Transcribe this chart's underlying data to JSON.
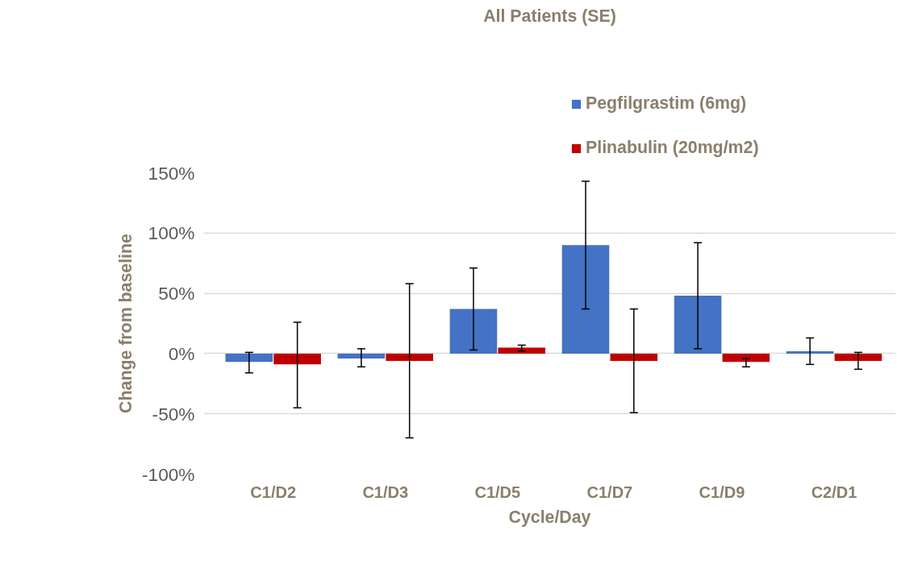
{
  "chart_data": {
    "type": "bar",
    "title": "All Patients (SE)",
    "xlabel": "Cycle/Day",
    "ylabel": "Change from baseline",
    "categories": [
      "C1/D2",
      "C1/D3",
      "C1/D5",
      "C1/D7",
      "C1/D9",
      "C2/D1"
    ],
    "series": [
      {
        "name": "Pegfilgrastim (6mg)",
        "color": "#4472c4",
        "values": [
          -7,
          -4,
          37,
          90,
          48,
          2
        ],
        "errors": [
          [
            -16,
            1
          ],
          [
            -11,
            4
          ],
          [
            3,
            71
          ],
          [
            37,
            143
          ],
          [
            4,
            92
          ],
          [
            -9,
            13
          ]
        ]
      },
      {
        "name": "Plinabulin (20mg/m2)",
        "color": "#c00000",
        "values": [
          -9,
          -6,
          5,
          -6,
          -7,
          -6
        ],
        "errors": [
          [
            -45,
            26
          ],
          [
            -70,
            58
          ],
          [
            2,
            7
          ],
          [
            -49,
            37
          ],
          [
            -11,
            -4
          ],
          [
            -13,
            1
          ]
        ]
      }
    ],
    "ylim": [
      -100,
      150
    ],
    "yticks": [
      {
        "value": -100,
        "label": "-100%"
      },
      {
        "value": -50,
        "label": "-50%"
      },
      {
        "value": 0,
        "label": "0%"
      },
      {
        "value": 50,
        "label": "50%"
      },
      {
        "value": 100,
        "label": "100%"
      },
      {
        "value": 150,
        "label": "150%"
      }
    ],
    "grid": "y",
    "legend": "top right"
  }
}
